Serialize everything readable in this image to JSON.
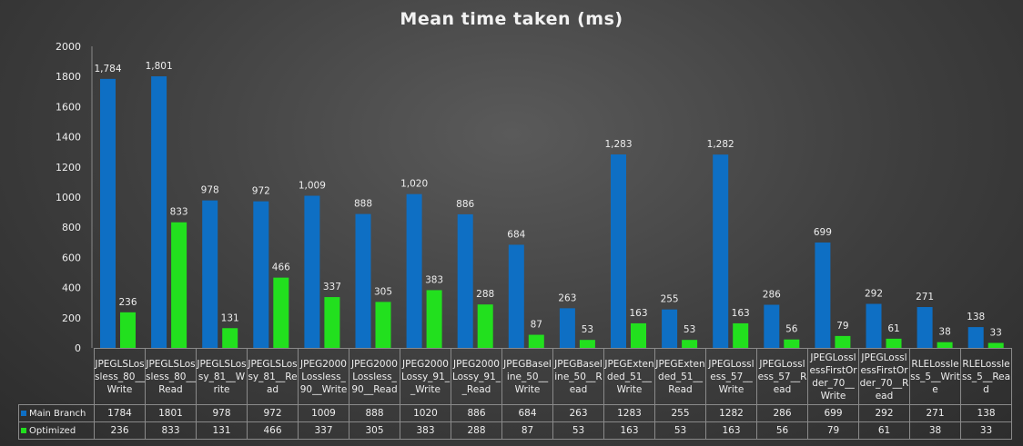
{
  "chart_data": {
    "type": "bar",
    "title": "Mean time taken (ms)",
    "categories": [
      "JPEGLSLossless_80__Write",
      "JPEGLSLossless_80__Read",
      "JPEGLSLossy_81__Write",
      "JPEGLSLossy_81__Read",
      "JPEG2000Lossless_90__Write",
      "JPEG2000Lossless_90__Read",
      "JPEG2000Lossy_91__Write",
      "JPEG2000Lossy_91__Read",
      "JPEGBaseline_50__Write",
      "JPEGBaseline_50__Read",
      "JPEGExtended_51__Write",
      "JPEGExtended_51__Read",
      "JPEGLossless_57__Write",
      "JPEGLossless_57__Read",
      "JPEGLosslessFirstOrder_70__Write",
      "JPEGLosslessFirstOrder_70__Read",
      "RLELossless_5__Write",
      "RLELossless_5__Read"
    ],
    "series": [
      {
        "name": "Main Branch",
        "color": "#0e6fc4",
        "values": [
          1784,
          1801,
          978,
          972,
          1009,
          888,
          1020,
          886,
          684,
          263,
          1283,
          255,
          1282,
          286,
          699,
          292,
          271,
          138
        ],
        "labels": [
          "1,784",
          "1,801",
          "978",
          "972",
          "1,009",
          "888",
          "1,020",
          "886",
          "684",
          "263",
          "1,283",
          "255",
          "1,282",
          "286",
          "699",
          "292",
          "271",
          "138"
        ]
      },
      {
        "name": "Optimized",
        "color": "#22e01e",
        "values": [
          236,
          833,
          131,
          466,
          337,
          305,
          383,
          288,
          87,
          53,
          163,
          53,
          163,
          56,
          79,
          61,
          38,
          33
        ],
        "labels": [
          "236",
          "833",
          "131",
          "466",
          "337",
          "305",
          "383",
          "288",
          "87",
          "53",
          "163",
          "53",
          "163",
          "56",
          "79",
          "61",
          "38",
          "33"
        ]
      }
    ],
    "ylim": [
      0,
      2000
    ],
    "yticks": [
      "0",
      "200",
      "400",
      "600",
      "800",
      "1000",
      "1200",
      "1400",
      "1600",
      "1800",
      "2000"
    ],
    "grid": false,
    "legend": "data-table"
  }
}
